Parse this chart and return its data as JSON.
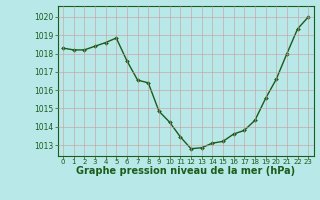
{
  "x": [
    0,
    1,
    2,
    3,
    4,
    5,
    6,
    7,
    8,
    9,
    10,
    11,
    12,
    13,
    14,
    15,
    16,
    17,
    18,
    19,
    20,
    21,
    22,
    23
  ],
  "y": [
    1018.3,
    1018.2,
    1018.2,
    1018.4,
    1018.6,
    1018.85,
    1017.6,
    1016.55,
    1016.4,
    1014.85,
    1014.25,
    1013.45,
    1012.8,
    1012.85,
    1013.1,
    1013.2,
    1013.6,
    1013.8,
    1014.35,
    1015.55,
    1016.6,
    1018.0,
    1019.35,
    1020.0
  ],
  "line_color": "#1a5c1a",
  "marker": "D",
  "marker_size": 2,
  "line_width": 1.0,
  "bg_color": "#b8e8e8",
  "grid_color": "#cc9999",
  "xlabel": "Graphe pression niveau de la mer (hPa)",
  "xlabel_fontsize": 7,
  "xlabel_color": "#1a5c1a",
  "ytick_labels": [
    "1013",
    "1014",
    "1015",
    "1016",
    "1017",
    "1018",
    "1019",
    "1020"
  ],
  "ytick_values": [
    1013,
    1014,
    1015,
    1016,
    1017,
    1018,
    1019,
    1020
  ],
  "ylim": [
    1012.4,
    1020.6
  ],
  "xlim": [
    -0.5,
    23.5
  ],
  "tick_color": "#1a5c1a",
  "tick_fontsize": 5.5,
  "xtick_fontsize": 5.0,
  "spine_color": "#1a5c1a"
}
